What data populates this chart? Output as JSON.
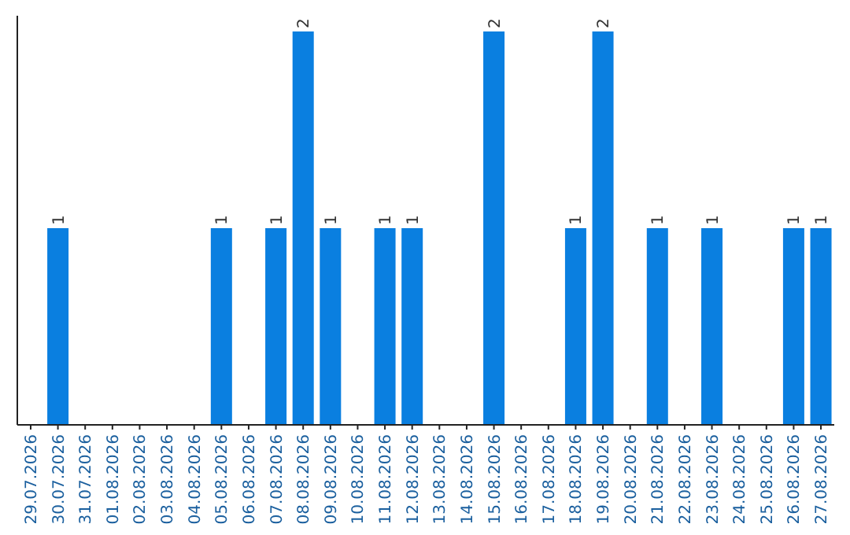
{
  "chart_data": {
    "type": "bar",
    "categories": [
      "29.07.2026",
      "30.07.2026",
      "31.07.2026",
      "01.08.2026",
      "02.08.2026",
      "03.08.2026",
      "04.08.2026",
      "05.08.2026",
      "06.08.2026",
      "07.08.2026",
      "08.08.2026",
      "09.08.2026",
      "10.08.2026",
      "11.08.2026",
      "12.08.2026",
      "13.08.2026",
      "14.08.2026",
      "15.08.2026",
      "16.08.2026",
      "17.08.2026",
      "18.08.2026",
      "19.08.2026",
      "20.08.2026",
      "21.08.2026",
      "22.08.2026",
      "23.08.2026",
      "24.08.2026",
      "25.08.2026",
      "26.08.2026",
      "27.08.2026"
    ],
    "values": [
      0,
      1,
      0,
      0,
      0,
      0,
      0,
      1,
      0,
      1,
      2,
      1,
      0,
      1,
      1,
      0,
      0,
      2,
      0,
      0,
      1,
      2,
      0,
      1,
      0,
      1,
      0,
      0,
      1,
      1
    ],
    "value_labels": [
      null,
      "1",
      null,
      null,
      null,
      null,
      null,
      "1",
      null,
      "1",
      "2",
      "1",
      null,
      "1",
      "1",
      null,
      null,
      "2",
      null,
      null,
      "1",
      "2",
      null,
      "1",
      null,
      "1",
      null,
      null,
      "1",
      "1"
    ],
    "color": "#0a7fe0",
    "ylim": [
      0,
      2
    ],
    "tick_labels": "x"
  }
}
